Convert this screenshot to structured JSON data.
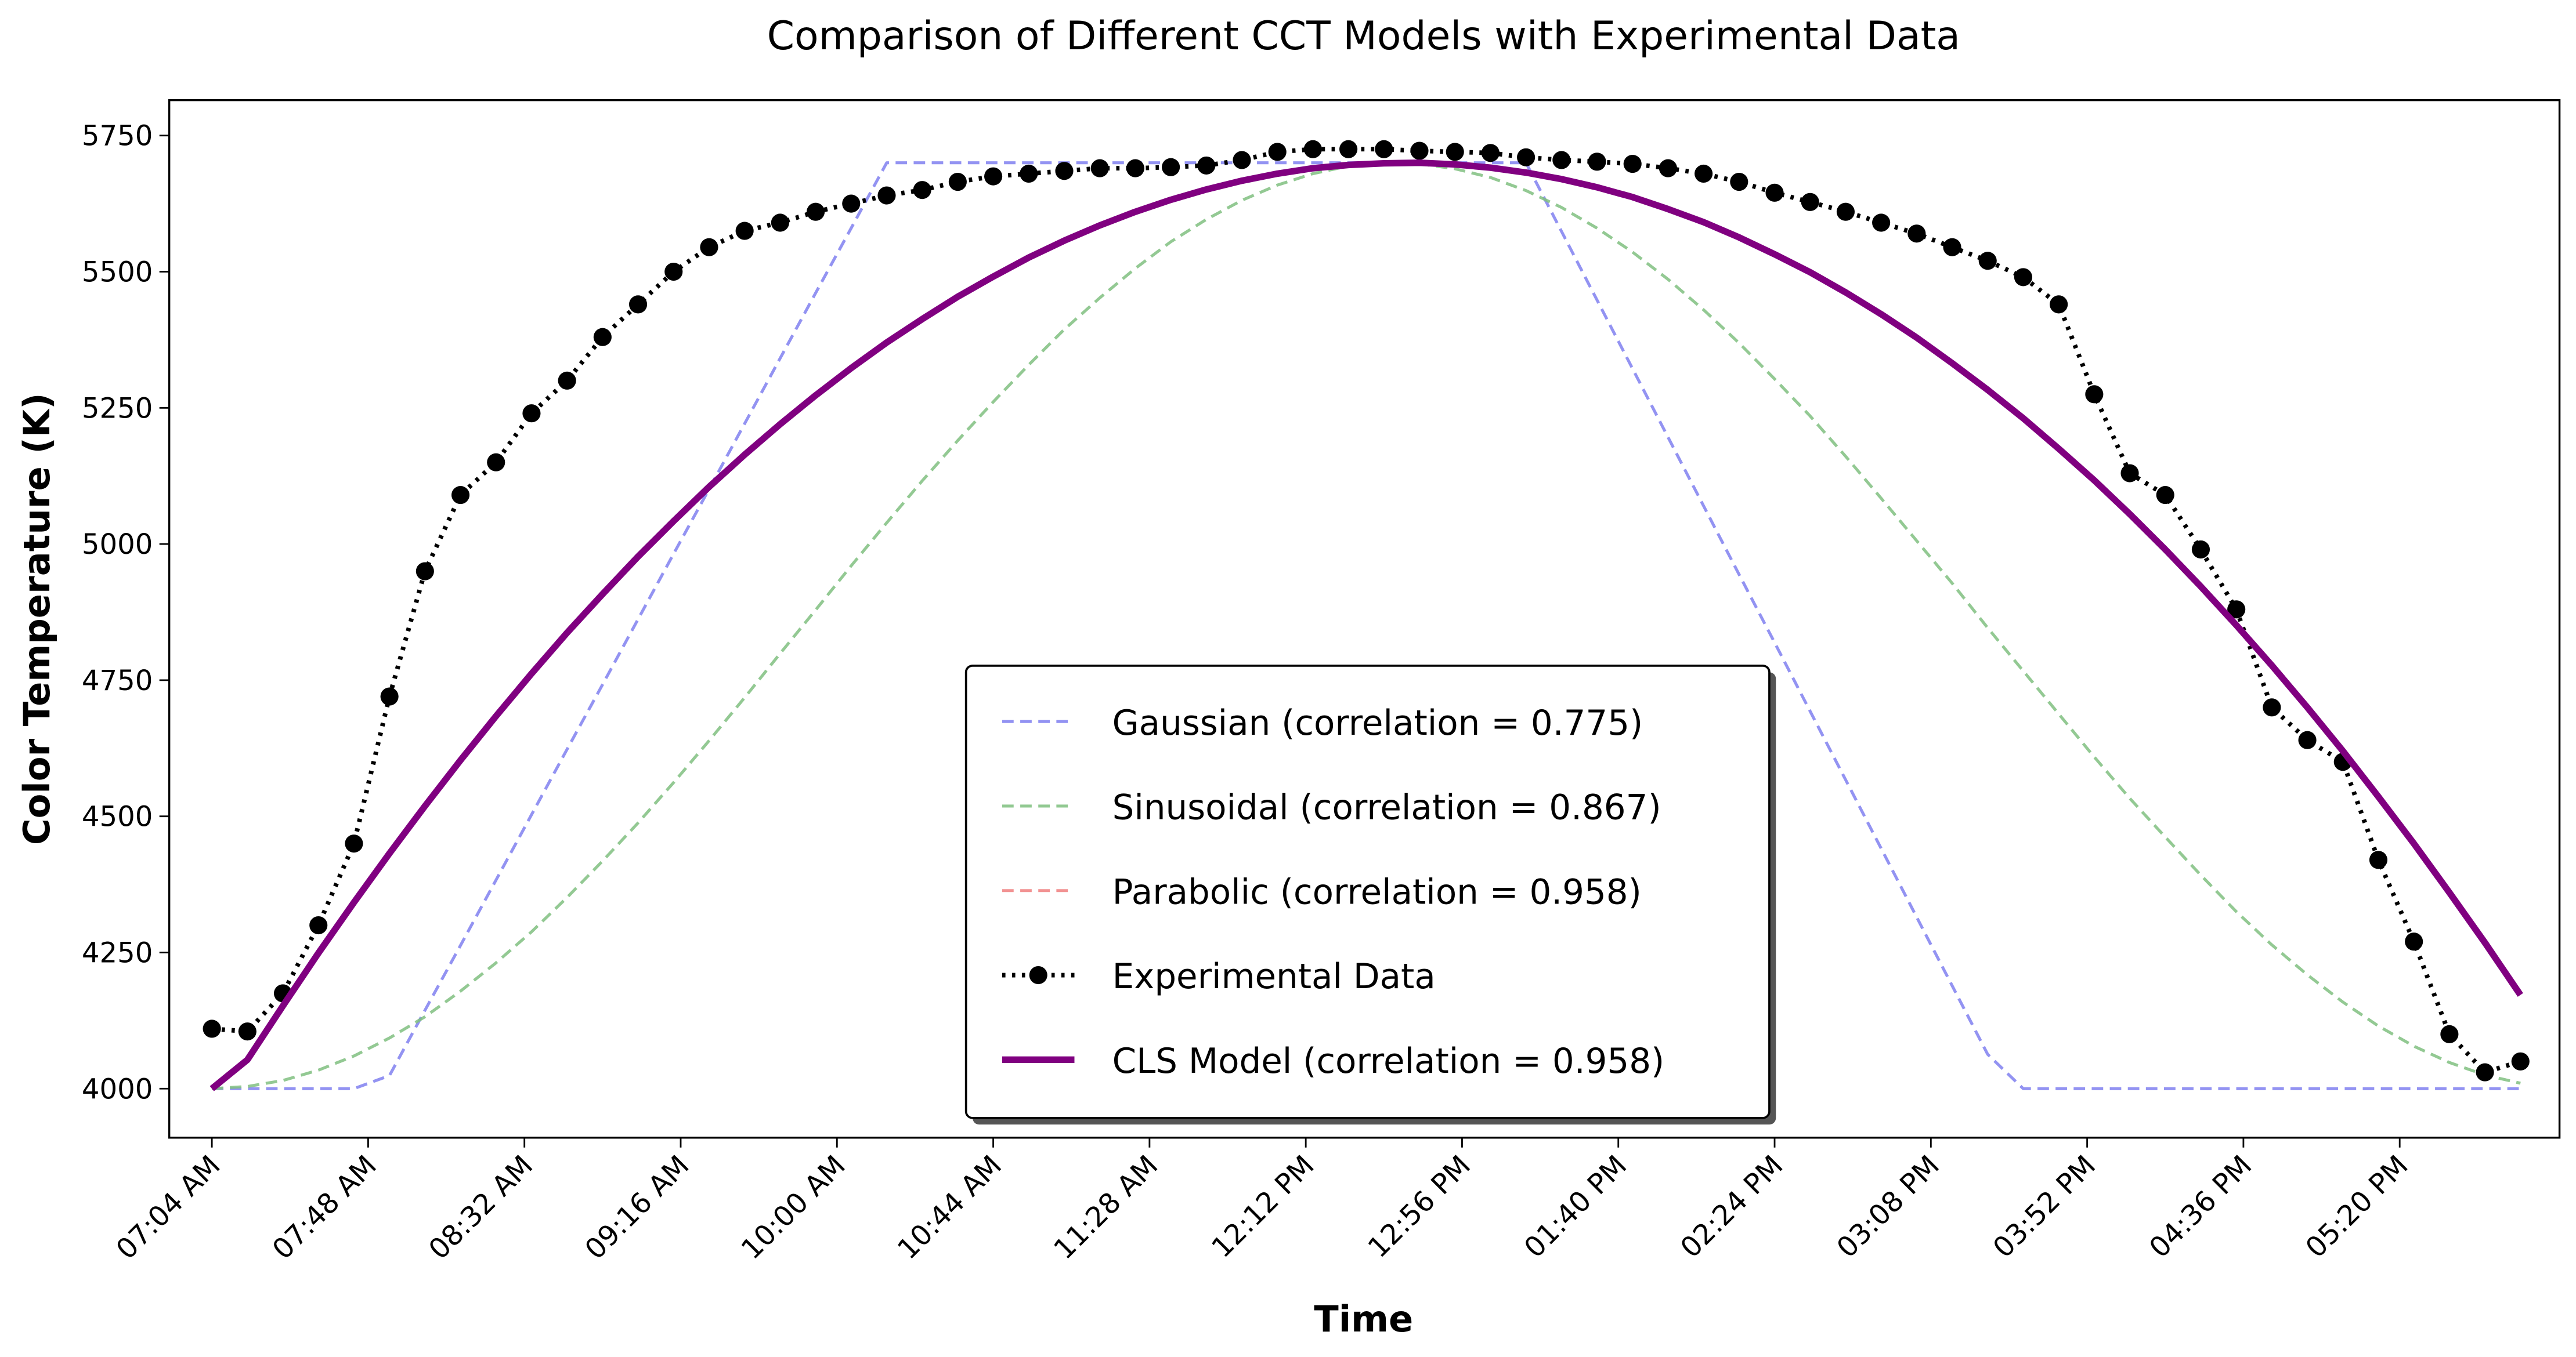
{
  "chart_data": {
    "type": "line",
    "title": "Comparison of Different CCT Models with Experimental Data",
    "x_label": "Time",
    "y_label": "Color Temperature (K)",
    "x": [
      "07:04 AM",
      "07:14 AM",
      "07:24 AM",
      "07:34 AM",
      "07:44 AM",
      "07:54 AM",
      "08:04 AM",
      "08:14 AM",
      "08:24 AM",
      "08:34 AM",
      "08:44 AM",
      "08:54 AM",
      "09:04 AM",
      "09:14 AM",
      "09:24 AM",
      "09:34 AM",
      "09:44 AM",
      "09:54 AM",
      "10:04 AM",
      "10:14 AM",
      "10:24 AM",
      "10:34 AM",
      "10:44 AM",
      "10:54 AM",
      "11:04 AM",
      "11:14 AM",
      "11:24 AM",
      "11:34 AM",
      "11:44 AM",
      "11:54 AM",
      "12:04 PM",
      "12:14 PM",
      "12:24 PM",
      "12:34 PM",
      "12:44 PM",
      "12:54 PM",
      "01:04 PM",
      "01:14 PM",
      "01:24 PM",
      "01:34 PM",
      "01:44 PM",
      "01:54 PM",
      "02:04 PM",
      "02:14 PM",
      "02:24 PM",
      "02:34 PM",
      "02:44 PM",
      "02:54 PM",
      "03:04 PM",
      "03:14 PM",
      "03:24 PM",
      "03:34 PM",
      "03:44 PM",
      "03:54 PM",
      "04:04 PM",
      "04:14 PM",
      "04:24 PM",
      "04:34 PM",
      "04:44 PM",
      "04:54 PM",
      "05:04 PM",
      "05:14 PM",
      "05:24 PM",
      "05:34 PM",
      "05:44 PM",
      "05:54 PM"
    ],
    "series": [
      {
        "name": "Gaussian (correlation = 0.775)",
        "color": "#8080f0",
        "style": "dashed",
        "values": [
          4000,
          4000,
          4000,
          4000,
          4000,
          4024,
          4144,
          4263,
          4383,
          4503,
          4623,
          4742,
          4862,
          4982,
          5101,
          5221,
          5341,
          5461,
          5580,
          5700,
          5700,
          5700,
          5700,
          5700,
          5700,
          5700,
          5700,
          5700,
          5700,
          5700,
          5700,
          5700,
          5700,
          5700,
          5700,
          5700,
          5700,
          5700,
          5574,
          5448,
          5322,
          5196,
          5070,
          4944,
          4819,
          4693,
          4567,
          4441,
          4315,
          4189,
          4063,
          4000,
          4000,
          4000,
          4000,
          4000,
          4000,
          4000,
          4000,
          4000,
          4000,
          4000,
          4000,
          4000,
          4000,
          4000
        ]
      },
      {
        "name": "Sinusoidal (correlation = 0.867)",
        "color": "#80c080",
        "style": "dashed",
        "values": [
          4000,
          4004,
          4015,
          4034,
          4060,
          4093,
          4132,
          4179,
          4231,
          4288,
          4351,
          4418,
          4488,
          4562,
          4639,
          4718,
          4799,
          4879,
          4960,
          5039,
          5116,
          5190,
          5261,
          5329,
          5394,
          5452,
          5506,
          5555,
          5596,
          5631,
          5659,
          5680,
          5694,
          5700,
          5698,
          5689,
          5673,
          5649,
          5618,
          5580,
          5536,
          5486,
          5430,
          5369,
          5303,
          5235,
          5161,
          5084,
          5006,
          4928,
          4846,
          4767,
          4688,
          4609,
          4533,
          4462,
          4392,
          4325,
          4264,
          4209,
          4159,
          4115,
          4078,
          4048,
          4025,
          4010
        ]
      },
      {
        "name": "Parabolic (correlation = 0.958)",
        "color": "#f08080",
        "style": "dashed",
        "values": [
          4000,
          4053,
          4152,
          4249,
          4342,
          4432,
          4519,
          4603,
          4684,
          4762,
          4837,
          4908,
          4977,
          5042,
          5105,
          5164,
          5220,
          5273,
          5323,
          5370,
          5413,
          5454,
          5491,
          5526,
          5557,
          5585,
          5610,
          5632,
          5651,
          5667,
          5680,
          5690,
          5696,
          5699,
          5700,
          5697,
          5691,
          5682,
          5670,
          5655,
          5637,
          5615,
          5591,
          5563,
          5532,
          5499,
          5462,
          5422,
          5379,
          5332,
          5283,
          5231,
          5175,
          5117,
          5055,
          4990,
          4922,
          4851,
          4777,
          4700,
          4620,
          4536,
          4450,
          4360,
          4268,
          4172
        ]
      },
      {
        "name": "Experimental Data",
        "color": "#000000",
        "style": "dotted",
        "marker": "circle",
        "values": [
          4110,
          4105,
          4175,
          4300,
          4450,
          4720,
          4950,
          5090,
          5150,
          5240,
          5300,
          5380,
          5440,
          5500,
          5545,
          5575,
          5590,
          5610,
          5625,
          5640,
          5650,
          5665,
          5675,
          5680,
          5685,
          5690,
          5690,
          5692,
          5695,
          5705,
          5720,
          5725,
          5725,
          5725,
          5722,
          5720,
          5718,
          5710,
          5705,
          5702,
          5698,
          5690,
          5680,
          5665,
          5645,
          5628,
          5610,
          5590,
          5570,
          5545,
          5520,
          5490,
          5440,
          5275,
          5130,
          5090,
          4990,
          4880,
          4700,
          4640,
          4600,
          4420,
          4270,
          4100,
          4030,
          4050
        ]
      },
      {
        "name": "CLS Model (correlation = 0.958)",
        "color": "#800080",
        "style": "solid",
        "values": [
          4000,
          4053,
          4152,
          4249,
          4342,
          4432,
          4519,
          4603,
          4684,
          4762,
          4837,
          4908,
          4977,
          5042,
          5105,
          5164,
          5220,
          5273,
          5323,
          5370,
          5413,
          5454,
          5491,
          5526,
          5557,
          5585,
          5610,
          5632,
          5651,
          5667,
          5680,
          5690,
          5696,
          5699,
          5700,
          5697,
          5691,
          5682,
          5670,
          5655,
          5637,
          5615,
          5591,
          5563,
          5532,
          5499,
          5462,
          5422,
          5379,
          5332,
          5283,
          5231,
          5175,
          5117,
          5055,
          4990,
          4922,
          4851,
          4777,
          4700,
          4620,
          4536,
          4450,
          4360,
          4268,
          4172
        ]
      }
    ],
    "xlim": [
      "06:52 AM",
      "06:05 PM"
    ],
    "xticks": [
      "07:04 AM",
      "07:48 AM",
      "08:32 AM",
      "09:16 AM",
      "10:00 AM",
      "10:44 AM",
      "11:28 AM",
      "12:12 PM",
      "12:56 PM",
      "01:40 PM",
      "02:24 PM",
      "03:08 PM",
      "03:52 PM",
      "04:36 PM",
      "05:20 PM"
    ],
    "ylim": [
      3910,
      5815
    ],
    "yticks": [
      4000,
      4250,
      4500,
      4750,
      5000,
      5250,
      5500,
      5750
    ],
    "grid": false,
    "legend": "lower center"
  }
}
